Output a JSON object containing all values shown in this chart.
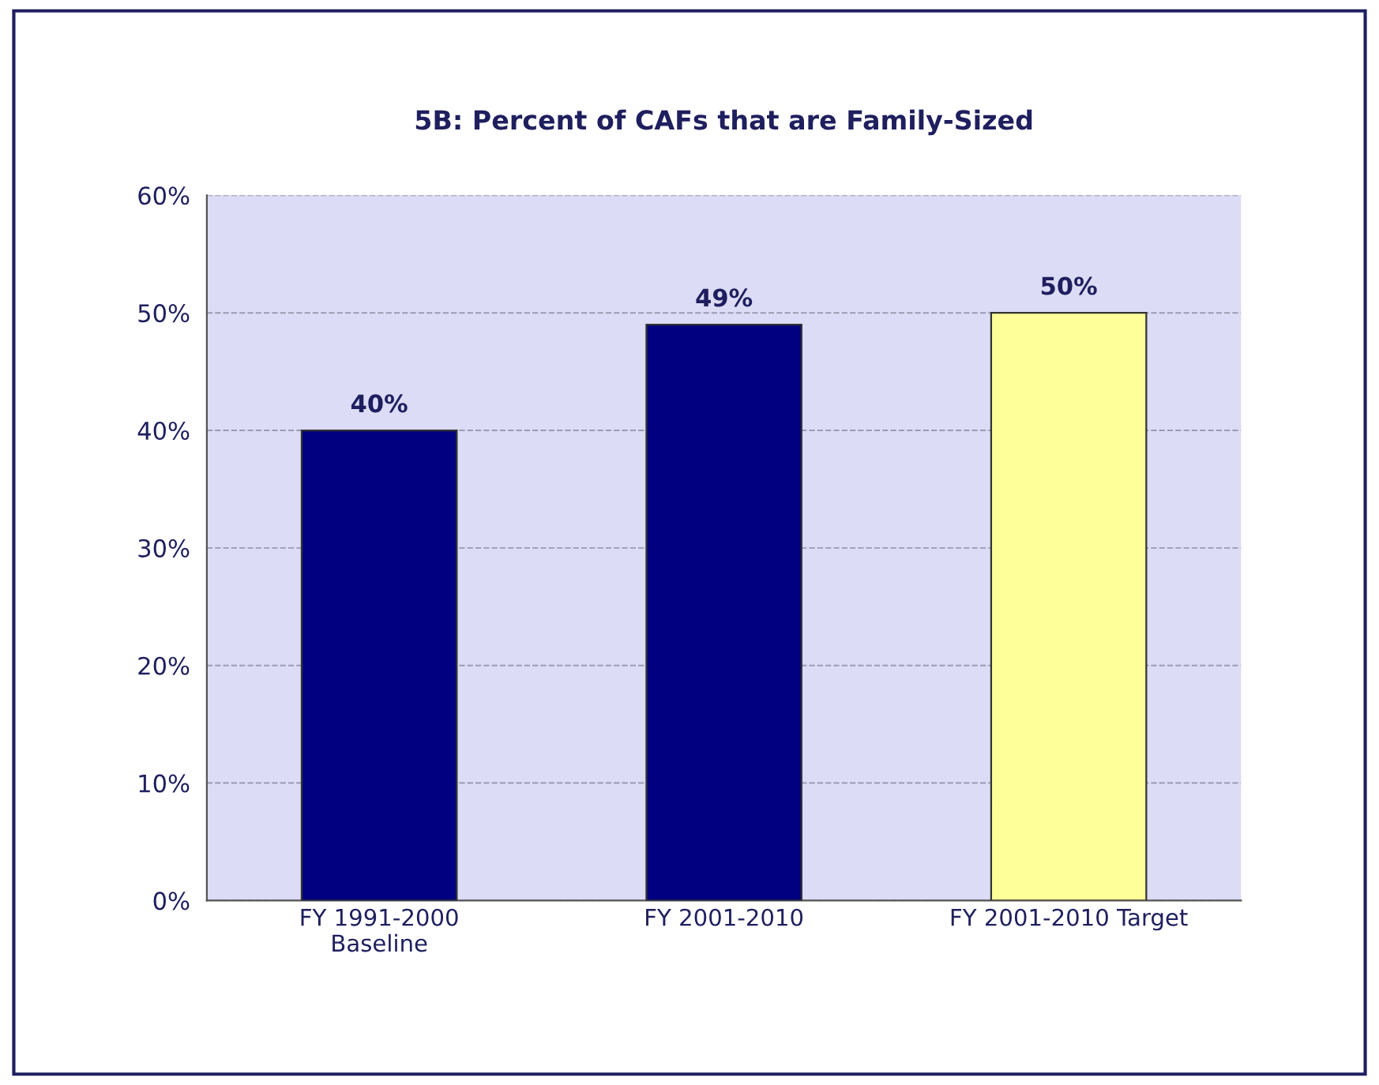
{
  "chart_data": {
    "type": "bar",
    "title": "5B: Percent of CAFs that are Family-Sized",
    "categories": [
      "FY 1991-2000\nBaseline",
      "FY 2001-2010",
      "FY 2001-2010 Target"
    ],
    "values": [
      40,
      49,
      50
    ],
    "colors": [
      "#000080",
      "#000080",
      "#ffff99"
    ],
    "value_labels": [
      "40%",
      "49%",
      "50%"
    ],
    "ylim": [
      0,
      60
    ],
    "yticks": [
      {
        "value": 0,
        "label": "0%"
      },
      {
        "value": 10,
        "label": "10%"
      },
      {
        "value": 20,
        "label": "20%"
      },
      {
        "value": 30,
        "label": "30%"
      },
      {
        "value": 40,
        "label": "40%"
      },
      {
        "value": 50,
        "label": "50%"
      },
      {
        "value": 60,
        "label": "60%"
      }
    ],
    "grid": "y",
    "legend": false
  }
}
